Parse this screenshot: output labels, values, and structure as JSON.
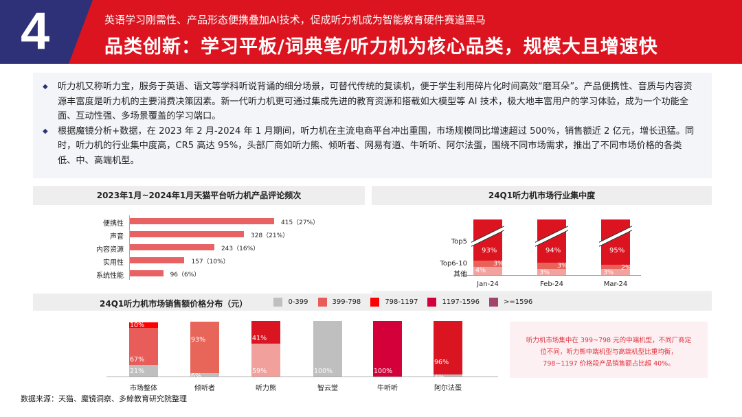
{
  "header": {
    "number": "4",
    "subtitle": "英语学习刚需性、产品形态便携叠加AI技术，促成听力机成为智能教育硬件赛道黑马",
    "title": "品类创新：学习平板/词典笔/听力机为核心品类，规模大且增速快",
    "colors": {
      "navy": "#2e3178",
      "red": "#db1420"
    }
  },
  "bullets": [
    "听力机又称听力宝，服务于英语、语文等学科听说背诵的细分场景，可替代传统的复读机，便于学生利用碎片化时间高效“磨耳朵”。产品便携性、音质与内容资源丰富度是听力机的主要消费决策因素。新一代听力机更可通过集成先进的教育资源和搭载如大模型等 AI 技术，极大地丰富用户的学习体验，成为一个功能全面、互动性强、多场景覆盖的学习端口。",
    "根据魔镜分析+数据，在 2023 年 2 月-2024 年 1 月期间，听力机在主流电商平台冲出重围，市场规模同比增速超过 500%，销售额近 2 亿元，增长迅猛。同时，听力机的行业集中度高，CR5 高达 95%，头部厂商如听力熊、倾听者、网易有道、牛听听、阿尔法蛋，围绕不同市场需求，推出了不同市场价格的各类低、中、高端机型。"
  ],
  "chart_data": [
    {
      "type": "bar",
      "orientation": "horizontal",
      "title": "2023年1月~2024年1月天猫平台听力机产品评论频次",
      "categories": [
        "便携性",
        "声音",
        "内容资源",
        "实用性",
        "系统性能"
      ],
      "values": [
        415,
        328,
        243,
        157,
        96
      ],
      "data_labels": [
        "415（27%）",
        "328（21%）",
        "243（16%）",
        "157（10%）",
        "96（6%）"
      ],
      "color": "#e86264"
    },
    {
      "type": "bar",
      "stacked": true,
      "axis_break": true,
      "title": "24Q1听力机市场行业集中度",
      "categories": [
        "Jan-24",
        "Feb-24",
        "Mar-24"
      ],
      "series": [
        {
          "name": "其他",
          "values": [
            4,
            3,
            3
          ],
          "color": "#f2a3a0"
        },
        {
          "name": "Top6-10",
          "values": [
            3,
            3,
            2
          ],
          "color": "#e8625a"
        },
        {
          "name": "Top5",
          "values": [
            93,
            94,
            95
          ],
          "color": "#db1420"
        }
      ]
    },
    {
      "type": "bar",
      "stacked": true,
      "title": "24Q1听力机市场销售额价格分布（元）",
      "legend": [
        {
          "name": "0-399",
          "color": "#bfbfbf"
        },
        {
          "name": "399-798",
          "color": "#e85c5a"
        },
        {
          "name": "798-1197",
          "color": "#ff0000"
        },
        {
          "name": "1197-1596",
          "color": "#d4003a"
        },
        {
          "name": ">=1596",
          "color": "#a0466e"
        }
      ],
      "categories": [
        "市场整体",
        "倾听者",
        "听力熊",
        "智云堂",
        "牛听听",
        "阿尔法蛋"
      ],
      "stacks": [
        [
          {
            "v": 21,
            "label": "21%",
            "color": "#bfbfbf"
          },
          {
            "v": 67,
            "label": "67%",
            "color": "#e85c5a"
          },
          {
            "v": 10,
            "label": "10%",
            "color": "#ff0000"
          }
        ],
        [
          {
            "v": 6,
            "label": "6%",
            "color": "#bfbfbf"
          },
          {
            "v": 93,
            "label": "93%",
            "color": "#e8655a"
          }
        ],
        [
          {
            "v": 59,
            "label": "59%",
            "color": "#f2a09c"
          },
          {
            "v": 41,
            "label": "41%",
            "color": "#da1420"
          }
        ],
        [
          {
            "v": 100,
            "label": "100%",
            "color": "#bfbfbf"
          }
        ],
        [
          {
            "v": 100,
            "label": "100%",
            "color": "#d4003a"
          }
        ],
        [
          {
            "v": 4,
            "label": "4%",
            "color": "#bfbfbf"
          },
          {
            "v": 96,
            "label": "96%",
            "color": "#da1420"
          }
        ]
      ]
    }
  ],
  "callout": [
    "听力机市场集中在 399~798 元的中端机型，不同厂商定",
    "位不同，听力熊中端机型与高端机型比重均衡，",
    "798~1197 价格段产品销售额占比超 40%。"
  ],
  "source": "数据来源：天猫、魔镜洞察、多鲸教育研究院整理"
}
